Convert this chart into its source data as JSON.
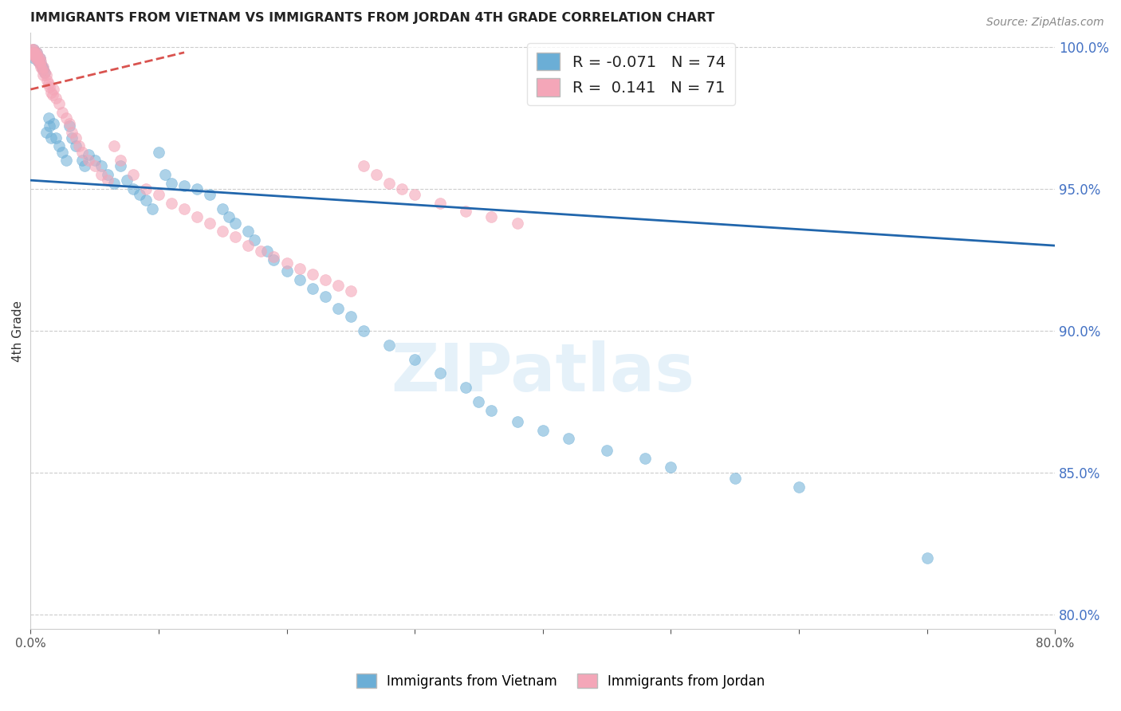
{
  "title": "IMMIGRANTS FROM VIETNAM VS IMMIGRANTS FROM JORDAN 4TH GRADE CORRELATION CHART",
  "source": "Source: ZipAtlas.com",
  "ylabel": "4th Grade",
  "xlim": [
    0.0,
    0.8
  ],
  "ylim": [
    0.795,
    1.005
  ],
  "xticks": [
    0.0,
    0.1,
    0.2,
    0.3,
    0.4,
    0.5,
    0.6,
    0.7,
    0.8
  ],
  "xticklabels": [
    "0.0%",
    "",
    "",
    "",
    "",
    "",
    "",
    "",
    "80.0%"
  ],
  "yticks": [
    0.8,
    0.85,
    0.9,
    0.95,
    1.0
  ],
  "yticklabels": [
    "80.0%",
    "85.0%",
    "90.0%",
    "95.0%",
    "100.0%"
  ],
  "legend_blue_r": "-0.071",
  "legend_blue_n": "74",
  "legend_pink_r": "0.141",
  "legend_pink_n": "71",
  "blue_color": "#6baed6",
  "pink_color": "#f4a6b8",
  "trend_blue_color": "#2166ac",
  "trend_pink_color": "#d9534f",
  "watermark": "ZIPatlas",
  "vietnam_x": [
    0.001,
    0.002,
    0.002,
    0.003,
    0.003,
    0.004,
    0.005,
    0.005,
    0.006,
    0.007,
    0.008,
    0.009,
    0.01,
    0.011,
    0.012,
    0.014,
    0.015,
    0.016,
    0.018,
    0.02,
    0.022,
    0.025,
    0.028,
    0.03,
    0.032,
    0.035,
    0.04,
    0.042,
    0.045,
    0.05,
    0.055,
    0.06,
    0.065,
    0.07,
    0.075,
    0.08,
    0.085,
    0.09,
    0.095,
    0.1,
    0.105,
    0.11,
    0.12,
    0.13,
    0.14,
    0.15,
    0.155,
    0.16,
    0.17,
    0.175,
    0.185,
    0.19,
    0.2,
    0.21,
    0.22,
    0.23,
    0.24,
    0.25,
    0.26,
    0.28,
    0.3,
    0.32,
    0.34,
    0.35,
    0.36,
    0.38,
    0.4,
    0.42,
    0.45,
    0.48,
    0.5,
    0.55,
    0.6,
    0.7
  ],
  "vietnam_y": [
    0.998,
    0.997,
    0.999,
    0.996,
    0.998,
    0.997,
    0.996,
    0.998,
    0.995,
    0.996,
    0.994,
    0.993,
    0.992,
    0.991,
    0.97,
    0.975,
    0.972,
    0.968,
    0.973,
    0.968,
    0.965,
    0.963,
    0.96,
    0.972,
    0.968,
    0.965,
    0.96,
    0.958,
    0.962,
    0.96,
    0.958,
    0.955,
    0.952,
    0.958,
    0.953,
    0.95,
    0.948,
    0.946,
    0.943,
    0.963,
    0.955,
    0.952,
    0.951,
    0.95,
    0.948,
    0.943,
    0.94,
    0.938,
    0.935,
    0.932,
    0.928,
    0.925,
    0.921,
    0.918,
    0.915,
    0.912,
    0.908,
    0.905,
    0.9,
    0.895,
    0.89,
    0.885,
    0.88,
    0.875,
    0.872,
    0.868,
    0.865,
    0.862,
    0.858,
    0.855,
    0.852,
    0.848,
    0.845,
    0.82
  ],
  "jordan_x": [
    0.001,
    0.001,
    0.002,
    0.002,
    0.002,
    0.003,
    0.003,
    0.004,
    0.004,
    0.005,
    0.005,
    0.005,
    0.006,
    0.006,
    0.007,
    0.007,
    0.008,
    0.008,
    0.009,
    0.01,
    0.01,
    0.011,
    0.012,
    0.013,
    0.014,
    0.015,
    0.016,
    0.017,
    0.018,
    0.02,
    0.022,
    0.025,
    0.028,
    0.03,
    0.032,
    0.035,
    0.038,
    0.04,
    0.045,
    0.05,
    0.055,
    0.06,
    0.065,
    0.07,
    0.08,
    0.09,
    0.1,
    0.11,
    0.12,
    0.13,
    0.14,
    0.15,
    0.16,
    0.17,
    0.18,
    0.19,
    0.2,
    0.21,
    0.22,
    0.23,
    0.24,
    0.25,
    0.26,
    0.27,
    0.28,
    0.29,
    0.3,
    0.32,
    0.34,
    0.36,
    0.38
  ],
  "jordan_y": [
    0.999,
    0.998,
    0.999,
    0.997,
    0.998,
    0.997,
    0.998,
    0.996,
    0.997,
    0.996,
    0.997,
    0.998,
    0.995,
    0.996,
    0.994,
    0.996,
    0.993,
    0.995,
    0.992,
    0.99,
    0.993,
    0.991,
    0.99,
    0.988,
    0.987,
    0.986,
    0.984,
    0.983,
    0.985,
    0.982,
    0.98,
    0.977,
    0.975,
    0.973,
    0.97,
    0.968,
    0.965,
    0.963,
    0.96,
    0.958,
    0.955,
    0.953,
    0.965,
    0.96,
    0.955,
    0.95,
    0.948,
    0.945,
    0.943,
    0.94,
    0.938,
    0.935,
    0.933,
    0.93,
    0.928,
    0.926,
    0.924,
    0.922,
    0.92,
    0.918,
    0.916,
    0.914,
    0.958,
    0.955,
    0.952,
    0.95,
    0.948,
    0.945,
    0.942,
    0.94,
    0.938
  ],
  "blue_trend_x0": 0.0,
  "blue_trend_y0": 0.953,
  "blue_trend_x1": 0.8,
  "blue_trend_y1": 0.93,
  "pink_trend_x0": 0.0,
  "pink_trend_y0": 0.985,
  "pink_trend_x1": 0.12,
  "pink_trend_y1": 0.998
}
